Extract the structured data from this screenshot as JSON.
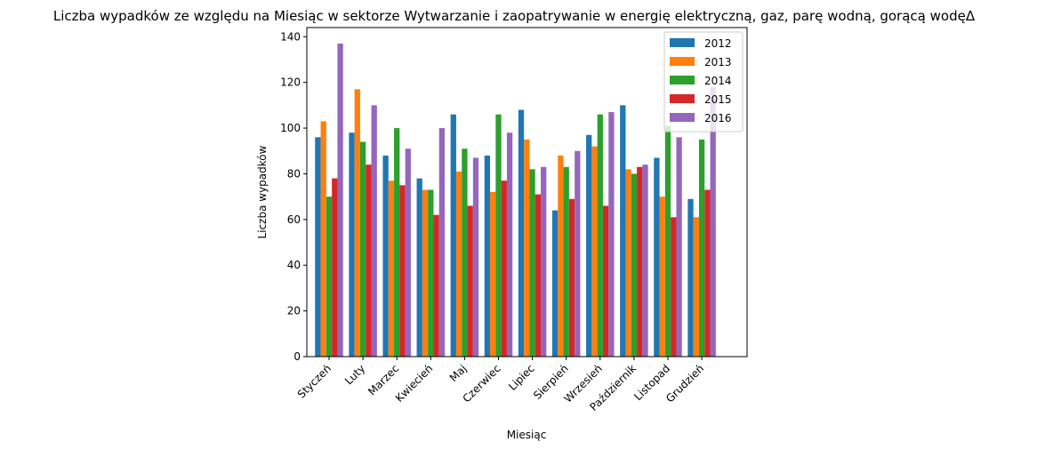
{
  "chart_data": {
    "type": "bar",
    "title": "Liczba wypadków ze względu na Miesiąc w sektorze Wytwarzanie i zaopatrywanie w energię elektryczną, gaz, parę wodną, gorącą wodęΔ",
    "xlabel": "Miesiąc",
    "ylabel": "Liczba wypadków",
    "ylim": [
      0,
      144
    ],
    "yticks": [
      0,
      20,
      40,
      60,
      80,
      100,
      120,
      140
    ],
    "legend_position": "top-right",
    "categories": [
      "Styczeń",
      "Luty",
      "Marzec",
      "Kwiecień",
      "Maj",
      "Czerwiec",
      "Lipiec",
      "Sierpień",
      "Wrzesień",
      "Październik",
      "Listopad",
      "Grudzień"
    ],
    "series": [
      {
        "name": "2012",
        "color": "#1f77b4",
        "values": [
          96,
          98,
          88,
          78,
          106,
          88,
          108,
          64,
          97,
          110,
          87,
          69
        ]
      },
      {
        "name": "2013",
        "color": "#ff7f0e",
        "values": [
          103,
          117,
          77,
          73,
          81,
          72,
          95,
          88,
          92,
          82,
          70,
          61
        ]
      },
      {
        "name": "2014",
        "color": "#2ca02c",
        "values": [
          70,
          94,
          100,
          73,
          91,
          106,
          82,
          83,
          106,
          80,
          101,
          95
        ]
      },
      {
        "name": "2015",
        "color": "#d62728",
        "values": [
          78,
          84,
          75,
          62,
          66,
          77,
          71,
          69,
          66,
          83,
          61,
          73
        ]
      },
      {
        "name": "2016",
        "color": "#9467bd",
        "values": [
          137,
          110,
          91,
          100,
          87,
          98,
          83,
          90,
          107,
          84,
          96,
          118
        ]
      }
    ]
  }
}
